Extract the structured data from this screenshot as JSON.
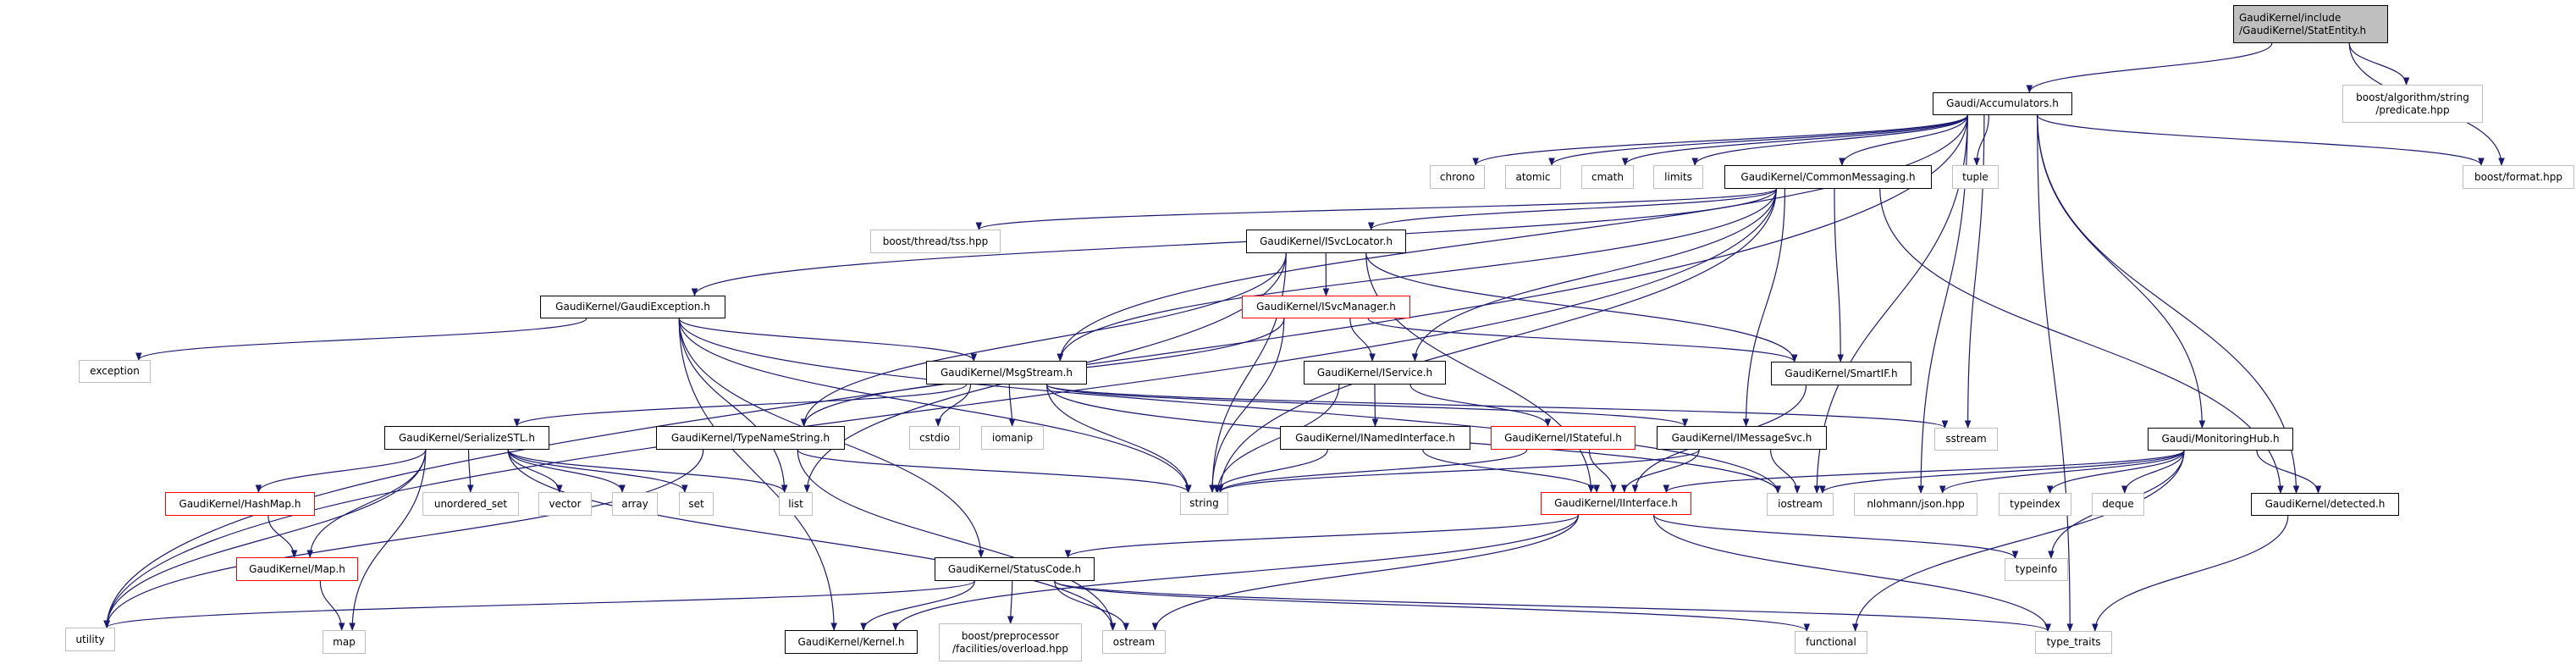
{
  "colors": {
    "edge": "#191970",
    "root_fill": "#bfbfbf",
    "truncated_border": "#ff0000",
    "system_border": "#bfbfbf",
    "documented_border": "#000000"
  },
  "nodes": [
    {
      "id": "statentity",
      "label": "GaudiKernel/include\n/GaudiKernel/StatEntity.h",
      "kind": "root"
    },
    {
      "id": "predicate",
      "label": "boost/algorithm/string\n/predicate.hpp",
      "kind": "sys"
    },
    {
      "id": "accumulators",
      "label": "Gaudi/Accumulators.h",
      "kind": "doc"
    },
    {
      "id": "chrono",
      "label": "chrono",
      "kind": "sys"
    },
    {
      "id": "atomic",
      "label": "atomic",
      "kind": "sys"
    },
    {
      "id": "cmath",
      "label": "cmath",
      "kind": "sys"
    },
    {
      "id": "limits",
      "label": "limits",
      "kind": "sys"
    },
    {
      "id": "commonmessaging",
      "label": "GaudiKernel/CommonMessaging.h",
      "kind": "doc"
    },
    {
      "id": "tuple",
      "label": "tuple",
      "kind": "sys"
    },
    {
      "id": "boostformat",
      "label": "boost/format.hpp",
      "kind": "sys"
    },
    {
      "id": "tss",
      "label": "boost/thread/tss.hpp",
      "kind": "sys"
    },
    {
      "id": "isvclocator",
      "label": "GaudiKernel/ISvcLocator.h",
      "kind": "doc"
    },
    {
      "id": "gaudiexception",
      "label": "GaudiKernel/GaudiException.h",
      "kind": "doc"
    },
    {
      "id": "isvcmanager",
      "label": "GaudiKernel/ISvcManager.h",
      "kind": "trunc"
    },
    {
      "id": "exception",
      "label": "exception",
      "kind": "sys"
    },
    {
      "id": "msgstream",
      "label": "GaudiKernel/MsgStream.h",
      "kind": "doc"
    },
    {
      "id": "iservice",
      "label": "GaudiKernel/IService.h",
      "kind": "doc"
    },
    {
      "id": "smartif",
      "label": "GaudiKernel/SmartIF.h",
      "kind": "doc"
    },
    {
      "id": "serializestl",
      "label": "GaudiKernel/SerializeSTL.h",
      "kind": "doc"
    },
    {
      "id": "typenamestring",
      "label": "GaudiKernel/TypeNameString.h",
      "kind": "doc"
    },
    {
      "id": "cstdio",
      "label": "cstdio",
      "kind": "sys"
    },
    {
      "id": "iomanip",
      "label": "iomanip",
      "kind": "sys"
    },
    {
      "id": "inamedinterface",
      "label": "GaudiKernel/INamedInterface.h",
      "kind": "doc"
    },
    {
      "id": "istateful",
      "label": "GaudiKernel/IStateful.h",
      "kind": "trunc"
    },
    {
      "id": "imessagesvc",
      "label": "GaudiKernel/IMessageSvc.h",
      "kind": "doc"
    },
    {
      "id": "sstream",
      "label": "sstream",
      "kind": "sys"
    },
    {
      "id": "monitoringhub",
      "label": "Gaudi/MonitoringHub.h",
      "kind": "doc"
    },
    {
      "id": "hashmap",
      "label": "GaudiKernel/HashMap.h",
      "kind": "trunc"
    },
    {
      "id": "unordered_set",
      "label": "unordered_set",
      "kind": "sys"
    },
    {
      "id": "vector",
      "label": "vector",
      "kind": "sys"
    },
    {
      "id": "array",
      "label": "array",
      "kind": "sys"
    },
    {
      "id": "set",
      "label": "set",
      "kind": "sys"
    },
    {
      "id": "list",
      "label": "list",
      "kind": "sys"
    },
    {
      "id": "string",
      "label": "string",
      "kind": "sys"
    },
    {
      "id": "iinterface",
      "label": "GaudiKernel/IInterface.h",
      "kind": "trunc"
    },
    {
      "id": "iostream",
      "label": "iostream",
      "kind": "sys"
    },
    {
      "id": "json",
      "label": "nlohmann/json.hpp",
      "kind": "sys"
    },
    {
      "id": "typeindex",
      "label": "typeindex",
      "kind": "sys"
    },
    {
      "id": "deque",
      "label": "deque",
      "kind": "sys"
    },
    {
      "id": "detected",
      "label": "GaudiKernel/detected.h",
      "kind": "doc"
    },
    {
      "id": "map_h",
      "label": "GaudiKernel/Map.h",
      "kind": "trunc"
    },
    {
      "id": "statuscode",
      "label": "GaudiKernel/StatusCode.h",
      "kind": "doc"
    },
    {
      "id": "typeinfo",
      "label": "typeinfo",
      "kind": "sys"
    },
    {
      "id": "utility",
      "label": "utility",
      "kind": "sys"
    },
    {
      "id": "map",
      "label": "map",
      "kind": "sys"
    },
    {
      "id": "kernel",
      "label": "GaudiKernel/Kernel.h",
      "kind": "doc"
    },
    {
      "id": "preprocessor",
      "label": "boost/preprocessor\n/facilities/overload.hpp",
      "kind": "sys"
    },
    {
      "id": "ostream",
      "label": "ostream",
      "kind": "sys"
    },
    {
      "id": "functional",
      "label": "functional",
      "kind": "sys"
    },
    {
      "id": "type_traits",
      "label": "type_traits",
      "kind": "sys"
    }
  ],
  "edges": [
    [
      "statentity",
      "accumulators"
    ],
    [
      "statentity",
      "predicate"
    ],
    [
      "statentity",
      "boostformat"
    ],
    [
      "accumulators",
      "chrono"
    ],
    [
      "accumulators",
      "atomic"
    ],
    [
      "accumulators",
      "cmath"
    ],
    [
      "accumulators",
      "limits"
    ],
    [
      "accumulators",
      "utility"
    ],
    [
      "accumulators",
      "msgstream"
    ],
    [
      "accumulators",
      "commonmessaging"
    ],
    [
      "accumulators",
      "tuple"
    ],
    [
      "accumulators",
      "sstream"
    ],
    [
      "accumulators",
      "iostream"
    ],
    [
      "accumulators",
      "json"
    ],
    [
      "accumulators",
      "monitoringhub"
    ],
    [
      "accumulators",
      "detected"
    ],
    [
      "accumulators",
      "type_traits"
    ],
    [
      "accumulators",
      "boostformat"
    ],
    [
      "commonmessaging",
      "tss"
    ],
    [
      "commonmessaging",
      "gaudiexception"
    ],
    [
      "commonmessaging",
      "utility"
    ],
    [
      "commonmessaging",
      "msgstream"
    ],
    [
      "commonmessaging",
      "isvclocator"
    ],
    [
      "commonmessaging",
      "string"
    ],
    [
      "commonmessaging",
      "iservice"
    ],
    [
      "commonmessaging",
      "smartif"
    ],
    [
      "commonmessaging",
      "imessagesvc"
    ],
    [
      "commonmessaging",
      "detected"
    ],
    [
      "isvclocator",
      "isvcmanager"
    ],
    [
      "isvclocator",
      "string"
    ],
    [
      "isvclocator",
      "smartif"
    ],
    [
      "isvclocator",
      "iinterface"
    ],
    [
      "isvclocator",
      "typenamestring"
    ],
    [
      "isvclocator",
      "list"
    ],
    [
      "isvcmanager",
      "iservice"
    ],
    [
      "isvcmanager",
      "string"
    ],
    [
      "isvcmanager",
      "smartif"
    ],
    [
      "isvcmanager",
      "typenamestring"
    ],
    [
      "gaudiexception",
      "exception"
    ],
    [
      "gaudiexception",
      "msgstream"
    ],
    [
      "gaudiexception",
      "string"
    ],
    [
      "gaudiexception",
      "kernel"
    ],
    [
      "gaudiexception",
      "statuscode"
    ],
    [
      "gaudiexception",
      "iostream"
    ],
    [
      "gaudiexception",
      "list"
    ],
    [
      "msgstream",
      "serializestl"
    ],
    [
      "msgstream",
      "cstdio"
    ],
    [
      "msgstream",
      "iomanip"
    ],
    [
      "msgstream",
      "string"
    ],
    [
      "msgstream",
      "sstream"
    ],
    [
      "msgstream",
      "imessagesvc"
    ],
    [
      "msgstream",
      "iostream"
    ],
    [
      "iservice",
      "inamedinterface"
    ],
    [
      "iservice",
      "istateful"
    ],
    [
      "iservice",
      "string"
    ],
    [
      "inamedinterface",
      "string"
    ],
    [
      "inamedinterface",
      "iinterface"
    ],
    [
      "istateful",
      "iinterface"
    ],
    [
      "istateful",
      "string"
    ],
    [
      "imessagesvc",
      "string"
    ],
    [
      "imessagesvc",
      "iinterface"
    ],
    [
      "imessagesvc",
      "iostream"
    ],
    [
      "smartif",
      "iinterface"
    ],
    [
      "serializestl",
      "hashmap"
    ],
    [
      "serializestl",
      "map_h"
    ],
    [
      "serializestl",
      "map"
    ],
    [
      "serializestl",
      "unordered_set"
    ],
    [
      "serializestl",
      "vector"
    ],
    [
      "serializestl",
      "array"
    ],
    [
      "serializestl",
      "set"
    ],
    [
      "serializestl",
      "list"
    ],
    [
      "serializestl",
      "utility"
    ],
    [
      "serializestl",
      "ostream"
    ],
    [
      "hashmap",
      "map_h"
    ],
    [
      "map_h",
      "map"
    ],
    [
      "typenamestring",
      "string"
    ],
    [
      "typenamestring",
      "ostream"
    ],
    [
      "typenamestring",
      "utility"
    ],
    [
      "iinterface",
      "statuscode"
    ],
    [
      "iinterface",
      "kernel"
    ],
    [
      "iinterface",
      "ostream"
    ],
    [
      "iinterface",
      "typeinfo"
    ],
    [
      "iinterface",
      "type_traits"
    ],
    [
      "statuscode",
      "utility"
    ],
    [
      "statuscode",
      "kernel"
    ],
    [
      "statuscode",
      "preprocessor"
    ],
    [
      "statuscode",
      "ostream"
    ],
    [
      "statuscode",
      "functional"
    ],
    [
      "statuscode",
      "type_traits"
    ],
    [
      "monitoringhub",
      "iostream"
    ],
    [
      "monitoringhub",
      "json"
    ],
    [
      "monitoringhub",
      "typeindex"
    ],
    [
      "monitoringhub",
      "deque"
    ],
    [
      "monitoringhub",
      "detected"
    ],
    [
      "monitoringhub",
      "typeinfo"
    ],
    [
      "monitoringhub",
      "functional"
    ],
    [
      "monitoringhub",
      "iinterface"
    ],
    [
      "detected",
      "type_traits"
    ]
  ]
}
